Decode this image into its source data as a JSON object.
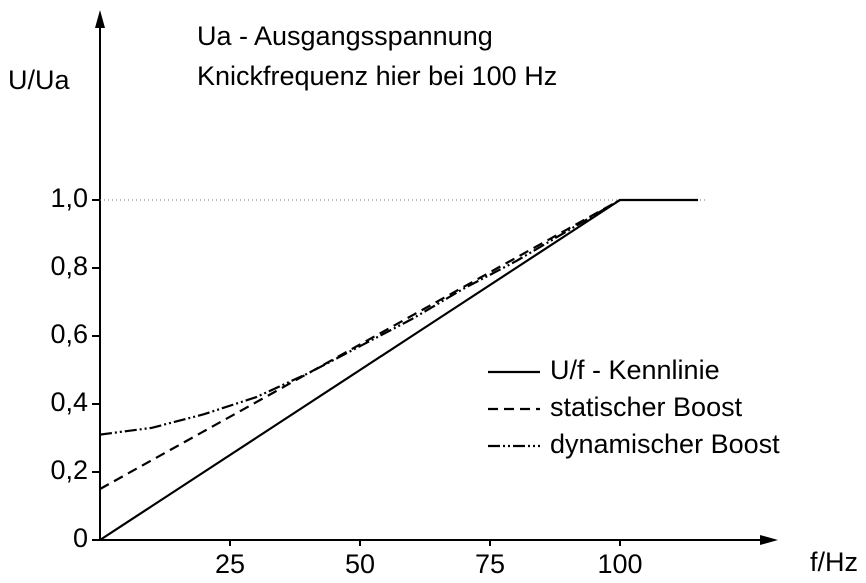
{
  "chart_data": {
    "type": "line",
    "annotations": [
      "Ua - Ausgangsspannung",
      "Knickfrequenz hier bei 100 Hz"
    ],
    "y_label": "U/Ua",
    "x_label": "f/Hz",
    "x": [
      0,
      10,
      20,
      30,
      40,
      50,
      60,
      70,
      80,
      90,
      100,
      115
    ],
    "series": [
      {
        "name": "U/f - Kennlinie",
        "color": "#000000",
        "style": "solid",
        "values": [
          0,
          0.1,
          0.2,
          0.3,
          0.4,
          0.5,
          0.6,
          0.7,
          0.8,
          0.9,
          1.0,
          1.0
        ]
      },
      {
        "name": "statischer Boost",
        "color": "#000000",
        "style": "dashed",
        "values": [
          0.15,
          0.235,
          0.32,
          0.405,
          0.49,
          0.575,
          0.66,
          0.745,
          0.83,
          0.915,
          1.0,
          null
        ]
      },
      {
        "name": "dynamischer Boost",
        "color": "#000000",
        "style": "dashdot",
        "values": [
          0.31,
          0.33,
          0.37,
          0.42,
          0.49,
          0.57,
          0.65,
          0.74,
          0.82,
          0.91,
          1.0,
          null
        ]
      }
    ],
    "xlim": [
      0,
      130
    ],
    "ylim": [
      0,
      1.55
    ],
    "xticks": [
      25,
      50,
      75,
      100
    ],
    "yticks": [
      0,
      {
        "value": 0.2,
        "label": "0,2"
      },
      {
        "value": 0.4,
        "label": "0,4"
      },
      {
        "value": 0.6,
        "label": "0,6"
      },
      {
        "value": 0.8,
        "label": "0,8"
      },
      {
        "value": 1.0,
        "label": "1,0"
      }
    ],
    "reference_line": 1.0,
    "legend": "lower right"
  }
}
